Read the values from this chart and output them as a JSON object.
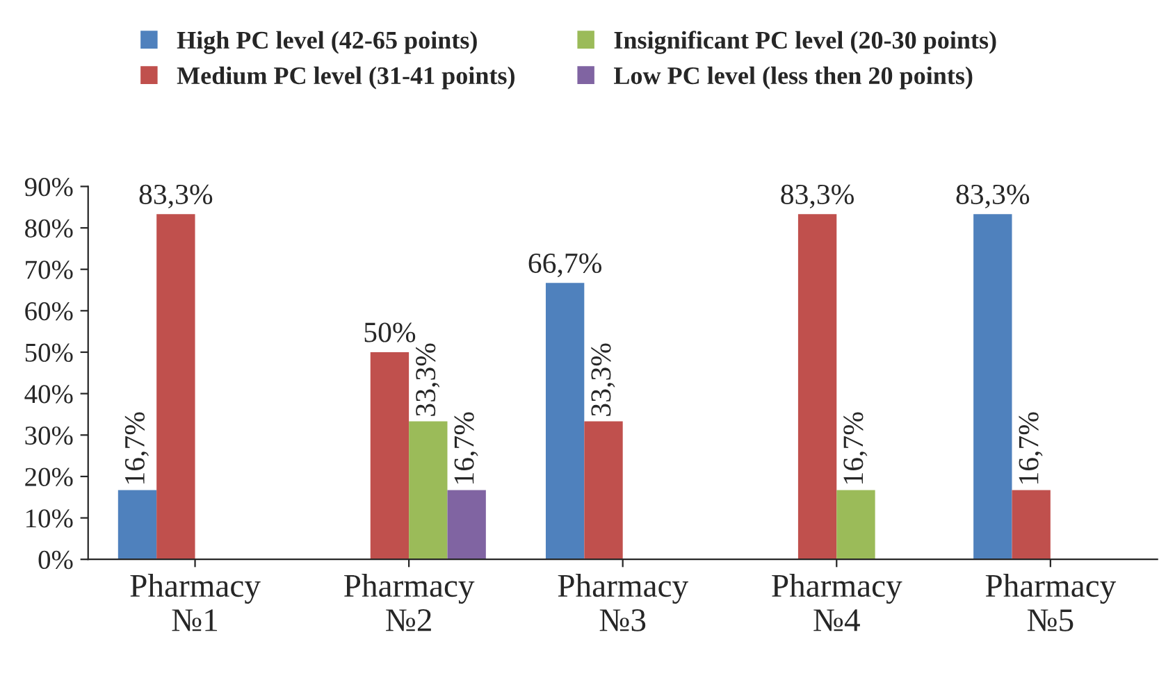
{
  "chart_data": {
    "type": "bar",
    "categories": [
      "Pharmacy\n№1",
      "Pharmacy\n№2",
      "Pharmacy\n№3",
      "Pharmacy\n№4",
      "Pharmacy\n№5"
    ],
    "series": [
      {
        "name": "High PC level (42-65 points)",
        "color": "#4f81bd",
        "values": [
          16.7,
          null,
          66.7,
          null,
          83.3
        ],
        "value_labels": [
          "16,7%",
          null,
          "66,7%",
          null,
          "83,3%"
        ]
      },
      {
        "name": "Medium PC level (31-41 points)",
        "color": "#c0504d",
        "values": [
          83.3,
          50,
          33.3,
          83.3,
          16.7
        ],
        "value_labels": [
          "83,3%",
          "50%",
          "33,3%",
          "83,3%",
          "16,7%"
        ]
      },
      {
        "name": "Insignificant PC level (20-30 points)",
        "color": "#9bbb59",
        "values": [
          null,
          33.3,
          null,
          16.7,
          null
        ],
        "value_labels": [
          null,
          "33,3%",
          null,
          "16,7%",
          null
        ]
      },
      {
        "name": "Low PC level (less then 20 points)",
        "color": "#8064a2",
        "values": [
          null,
          16.7,
          null,
          null,
          null
        ],
        "value_labels": [
          null,
          "16,7%",
          null,
          null,
          null
        ]
      }
    ],
    "ylim": [
      0,
      90
    ],
    "yticks": [
      {
        "value": 0,
        "label": "0%"
      },
      {
        "value": 10,
        "label": "10%"
      },
      {
        "value": 20,
        "label": "20%"
      },
      {
        "value": 30,
        "label": "30%"
      },
      {
        "value": 40,
        "label": "40%"
      },
      {
        "value": 50,
        "label": "50%"
      },
      {
        "value": 60,
        "label": "60%"
      },
      {
        "value": 70,
        "label": "70%"
      },
      {
        "value": 80,
        "label": "80%"
      },
      {
        "value": 90,
        "label": "90%"
      }
    ],
    "grid": false,
    "legend": "top"
  }
}
